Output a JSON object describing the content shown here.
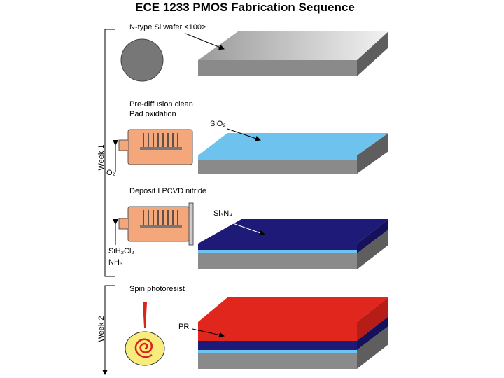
{
  "header": {
    "title": "ECE 1233 PMOS Fabrication Sequence"
  },
  "weeks": [
    "Week 1",
    "Week 2"
  ],
  "steps": [
    {
      "labels": [
        "N-type Si wafer <100>"
      ]
    },
    {
      "labels": [
        "Pre-diffusion clean",
        "Pad oxidation"
      ],
      "layer": "SiO₂",
      "gas": [
        "O₂"
      ]
    },
    {
      "labels": [
        "Deposit LPCVD nitride"
      ],
      "layer": "Si₃N₄",
      "gas": [
        "SiH₂Cl₂",
        "NH₃"
      ]
    },
    {
      "labels": [
        "Spin photoresist"
      ],
      "layer": "PR"
    }
  ]
}
